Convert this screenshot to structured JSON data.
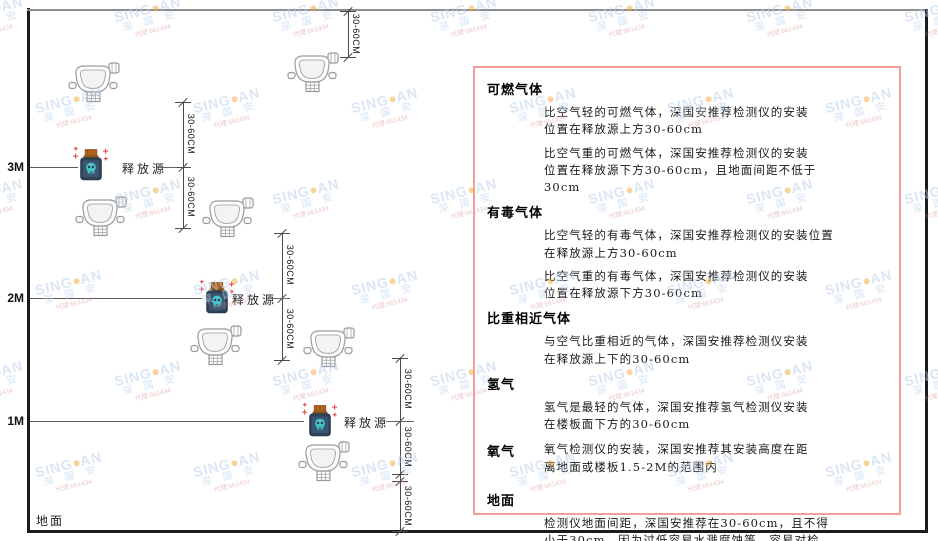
{
  "watermark": {
    "brand_left": "SING",
    "brand_right": "AN",
    "cjk": "深 国 安",
    "agent": "代理:661434",
    "rows": 6,
    "cols": 7
  },
  "diagram": {
    "height_labels": [
      "3M",
      "2M",
      "1M"
    ],
    "ground_label": "地面",
    "release_source_label": "释放源",
    "dim_label": "30-60CM"
  },
  "panel": {
    "sections": [
      {
        "heading": "可燃气体",
        "paras": [
          "比空气轻的可燃气体，深国安推荐检测仪的安装\n位置在释放源上方30-60cm",
          "比空气重的可燃气体，深国安推荐检测仪的安装\n位置在释放源下方30-60cm，且地面间距不低于\n30cm"
        ]
      },
      {
        "heading": "有毒气体",
        "paras": [
          "比空气轻的有毒气体，深国安推荐检测仪的安装位置\n在释放源上方30-60cm",
          "比空气重的有毒气体，深国安推荐检测仪的安装\n位置在释放源下方30-60cm"
        ]
      },
      {
        "heading": "比重相近气体",
        "paras": [
          "与空气比重相近的气体，深国安推荐检测仪安装\n在释放源上下的30-60cm"
        ]
      },
      {
        "heading": "氢气",
        "paras": [
          "氢气是最轻的气体，深国安推荐氢气检测仪安装\n在楼板面下方的30-60cm"
        ]
      },
      {
        "heading": "氧气",
        "paras": [
          "氧气检测仪的安装，深国安推荐其安装高度在距\n离地面或楼板1.5-2M的范围内"
        ]
      },
      {
        "heading": "地面",
        "paras": [
          "检测仪地面间距，深国安推荐在30-60cm，且不得\n小于30cm，因为过低容易水溅腐蚀等，容易对检\n测仪造成伤害"
        ]
      }
    ]
  },
  "colors": {
    "panel_border": "#f59d9d",
    "watermark_blue": "#b7cfea",
    "watermark_dot": "#f2a93b",
    "jar_cap": "#b5651d",
    "jar_body": "#2e4054",
    "jar_skull": "#49c5c9",
    "sparkle_red": "#e24c4c",
    "detector_stroke": "#9a9a9a"
  }
}
